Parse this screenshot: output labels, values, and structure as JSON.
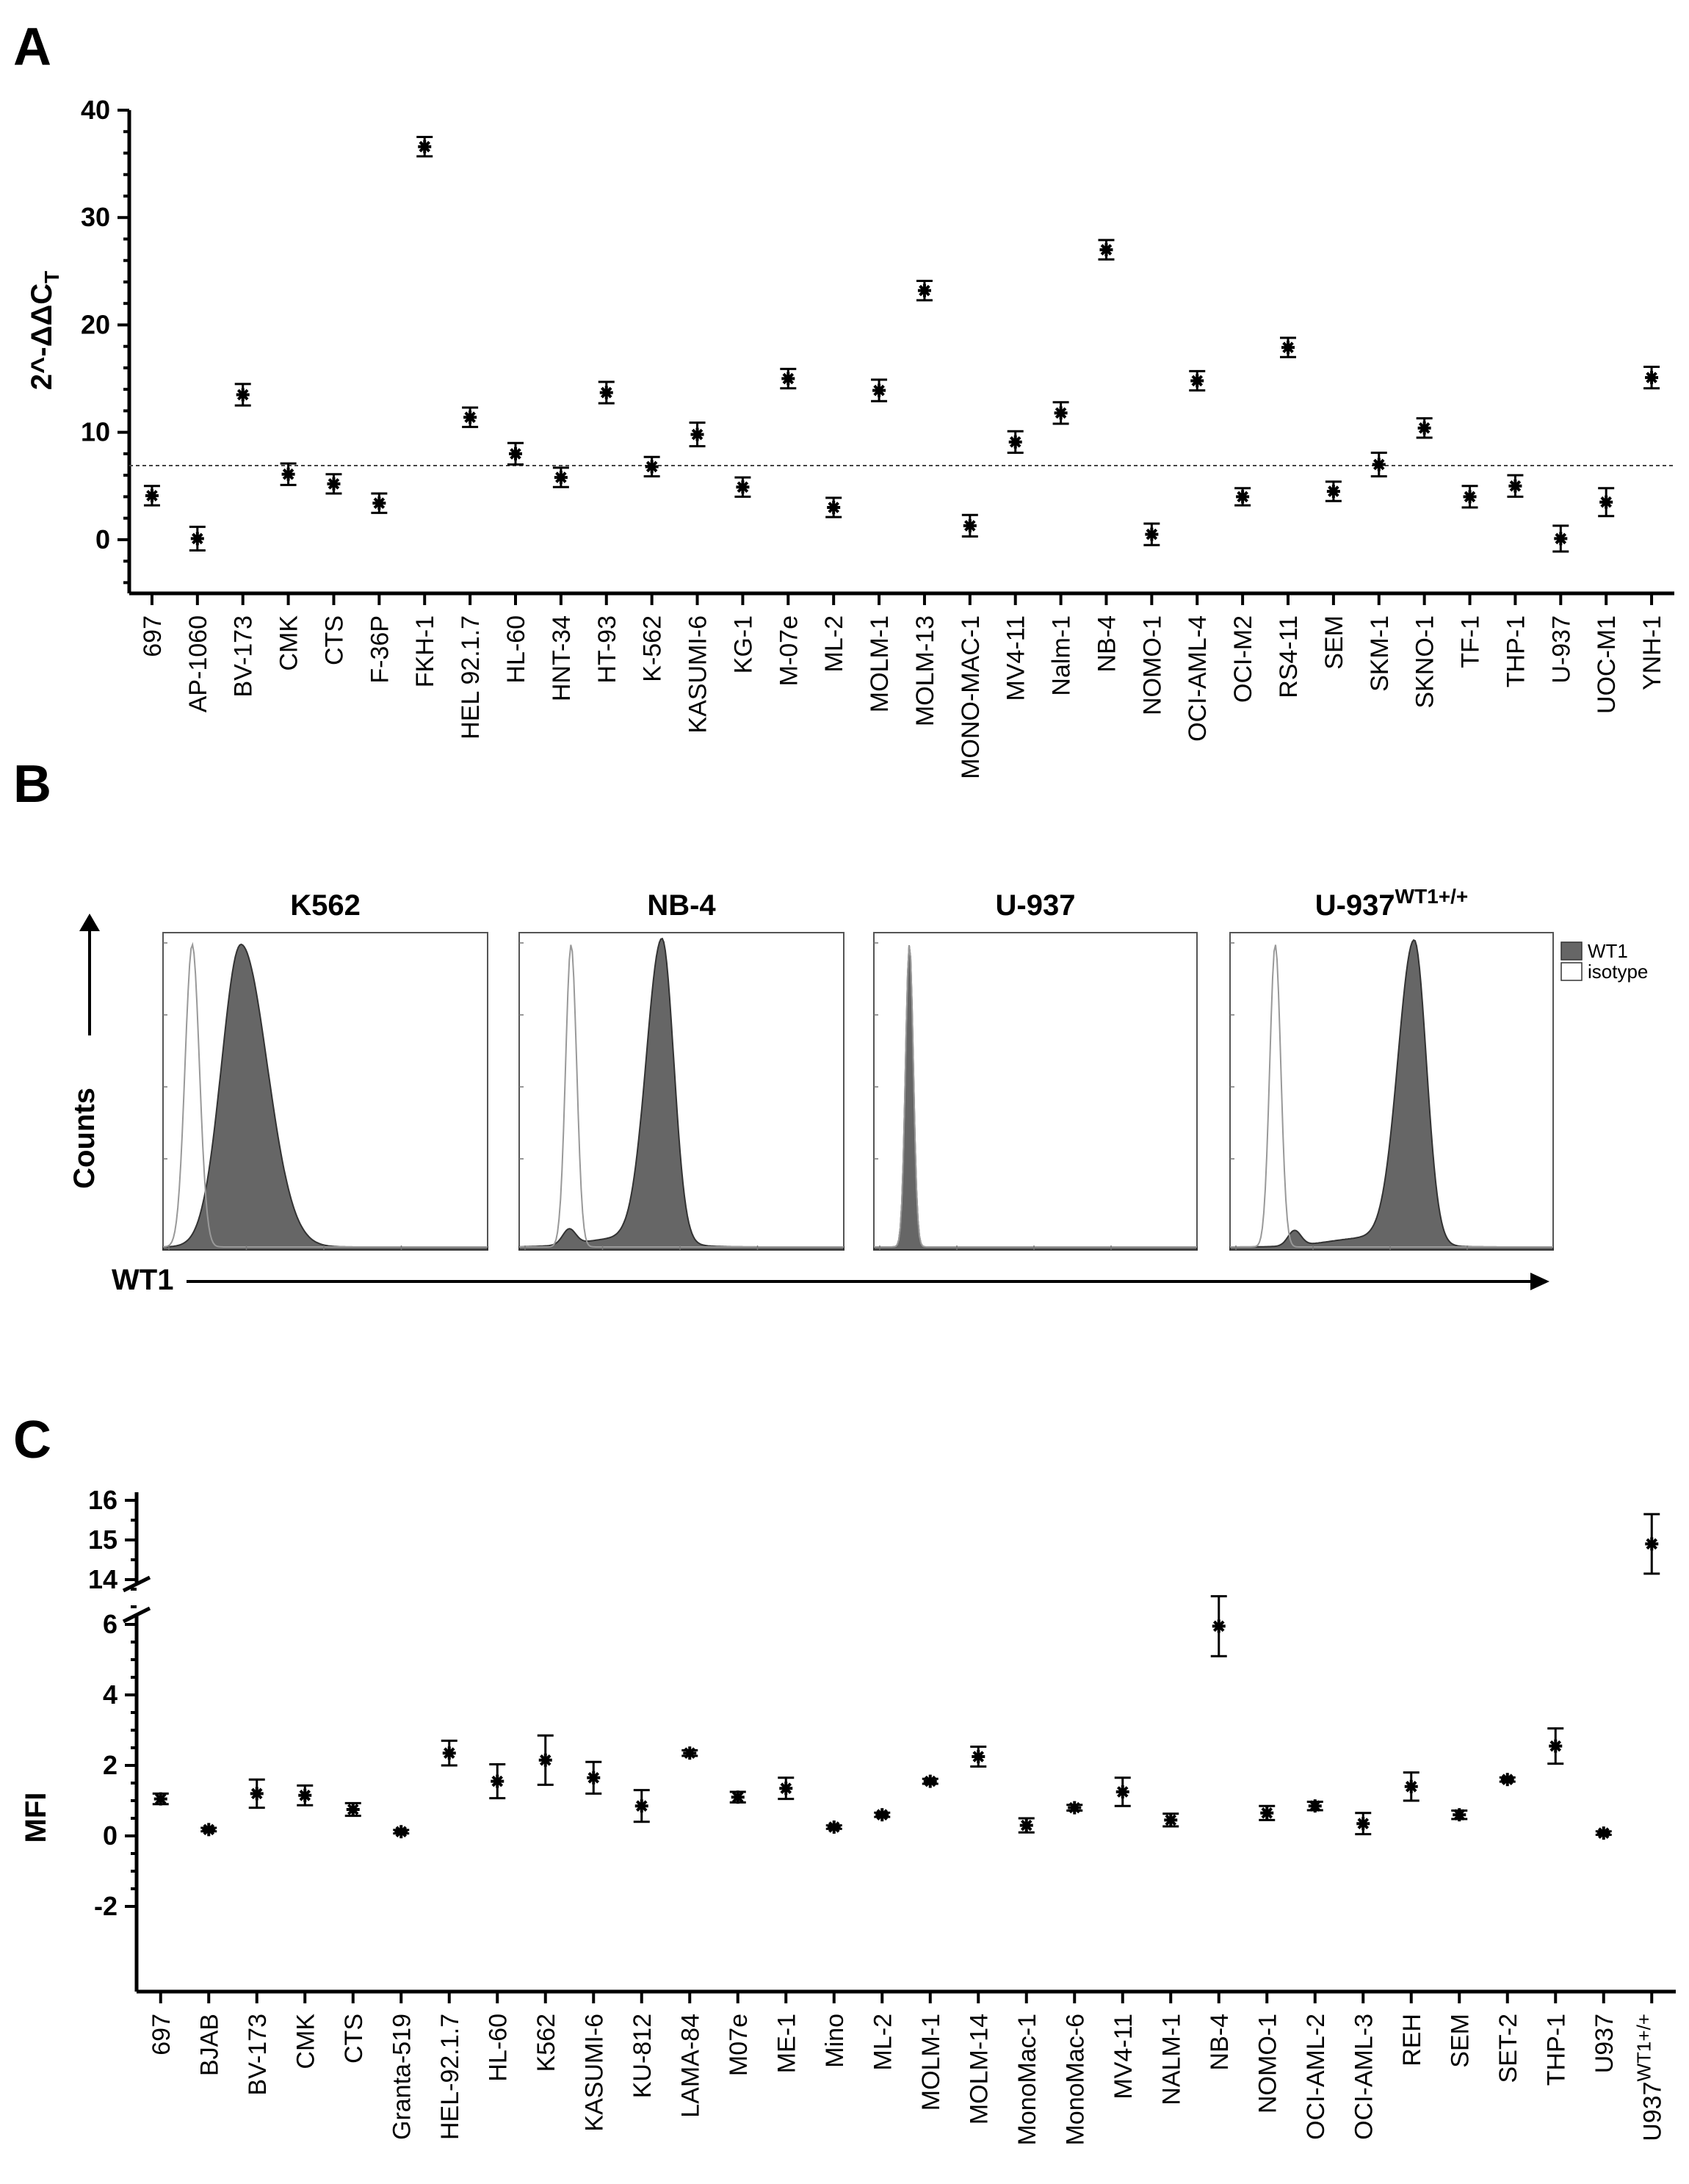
{
  "panels": {
    "a": "A",
    "b": "B",
    "c": "C"
  },
  "chart_data": [
    {
      "type": "scatter",
      "panel": "A",
      "ylabel": "2^-ΔΔC",
      "ylabel_sub": "T",
      "ylim": [
        -5,
        40
      ],
      "yticks": [
        0,
        10,
        20,
        30,
        40
      ],
      "threshold": 6.9,
      "categories": [
        "697",
        "AP-1060",
        "BV-173",
        "CMK",
        "CTS",
        "F-36P",
        "FKH-1",
        "HEL 92.1.7",
        "HL-60",
        "HNT-34",
        "HT-93",
        "K-562",
        "KASUMI-6",
        "KG-1",
        "M-07e",
        "ML-2",
        "MOLM-1",
        "MOLM-13",
        "MONO-MAC-1",
        "MV4-11",
        "Nalm-1",
        "NB-4",
        "NOMO-1",
        "OCI-AML-4",
        "OCI-M2",
        "RS4-11",
        "SEM",
        "SKM-1",
        "SKNO-1",
        "TF-1",
        "THP-1",
        "U-937",
        "UOC-M1",
        "YNH-1"
      ],
      "values": [
        4.1,
        0.1,
        13.5,
        6.1,
        5.2,
        3.4,
        36.6,
        11.4,
        8.0,
        5.8,
        13.7,
        6.8,
        9.8,
        4.9,
        15.0,
        3.0,
        13.9,
        23.2,
        1.3,
        9.1,
        11.8,
        27.0,
        0.5,
        14.8,
        4.0,
        17.9,
        4.5,
        7.0,
        10.4,
        4.0,
        5.0,
        0.1,
        3.5,
        15.1
      ],
      "errors": [
        0.9,
        1.1,
        1.0,
        1.0,
        0.9,
        0.9,
        0.9,
        0.9,
        1.0,
        0.9,
        1.0,
        0.9,
        1.1,
        0.9,
        0.9,
        0.9,
        1.0,
        0.9,
        1.0,
        1.0,
        1.0,
        0.9,
        1.0,
        0.9,
        0.8,
        0.9,
        0.9,
        1.1,
        0.9,
        1.0,
        1.0,
        1.2,
        1.3,
        1.0
      ]
    },
    {
      "type": "area",
      "panel": "B",
      "ylabel": "Counts",
      "xlabel": "WT1",
      "legend": [
        "WT1",
        "isotype"
      ],
      "legend_position": "right",
      "subplots": [
        {
          "title": "K562",
          "title_sup": "",
          "isotype_peak": 0.09,
          "isotype_width": 0.022,
          "wt1_peak": 0.24,
          "wt1_width": 0.07,
          "wt1_shape": "broad"
        },
        {
          "title": "NB-4",
          "title_sup": "",
          "isotype_peak": 0.16,
          "isotype_width": 0.017,
          "wt1_peak": 0.44,
          "wt1_width": 0.048,
          "wt1_shape": "skewed"
        },
        {
          "title": "U-937",
          "title_sup": "",
          "isotype_peak": 0.11,
          "isotype_width": 0.012,
          "wt1_peak": 0.11,
          "wt1_width": 0.012,
          "wt1_shape": "overlap"
        },
        {
          "title": "U-937",
          "title_sup": "WT1+/+",
          "isotype_peak": 0.14,
          "isotype_width": 0.017,
          "wt1_peak": 0.57,
          "wt1_width": 0.05,
          "wt1_shape": "skewed"
        }
      ]
    },
    {
      "type": "scatter",
      "panel": "C",
      "ylabel": "MFI",
      "ylim_lower": [
        -2,
        7.3
      ],
      "yticks_lower": [
        -2,
        0,
        2,
        4,
        6
      ],
      "ylim_upper": [
        14,
        16
      ],
      "yticks_upper": [
        14,
        15,
        16
      ],
      "categories": [
        "697",
        "BJAB",
        "BV-173",
        "CMK",
        "CTS",
        "Granta-519",
        "HEL-92.1.7",
        "HL-60",
        "K562",
        "KASUMI-6",
        "KU-812",
        "LAMA-84",
        "M07e",
        "ME-1",
        "Mino",
        "ML-2",
        "MOLM-1",
        "MOLM-14",
        "MonoMac-1",
        "MonoMac-6",
        "MV4-11",
        "NALM-1",
        "NB-4",
        "NOMO-1",
        "OCI-AML-2",
        "OCI-AML-3",
        "REH",
        "SEM",
        "SET-2",
        "THP-1",
        "U937",
        "U937"
      ],
      "last_category_sup": "WT1+/+",
      "values": [
        1.05,
        0.18,
        1.2,
        1.15,
        0.75,
        0.12,
        2.35,
        1.55,
        2.15,
        1.65,
        0.85,
        2.35,
        1.1,
        1.35,
        0.25,
        0.6,
        1.55,
        2.25,
        0.3,
        0.8,
        1.25,
        0.45,
        5.95,
        0.65,
        0.85,
        0.35,
        1.4,
        0.6,
        1.6,
        2.55,
        0.08,
        14.9
      ],
      "errors": [
        0.15,
        0.05,
        0.4,
        0.28,
        0.18,
        0.05,
        0.35,
        0.48,
        0.7,
        0.45,
        0.45,
        0.08,
        0.15,
        0.3,
        0.05,
        0.06,
        0.07,
        0.28,
        0.2,
        0.08,
        0.4,
        0.18,
        0.85,
        0.2,
        0.12,
        0.3,
        0.4,
        0.12,
        0.06,
        0.5,
        0.05,
        0.75
      ]
    }
  ]
}
